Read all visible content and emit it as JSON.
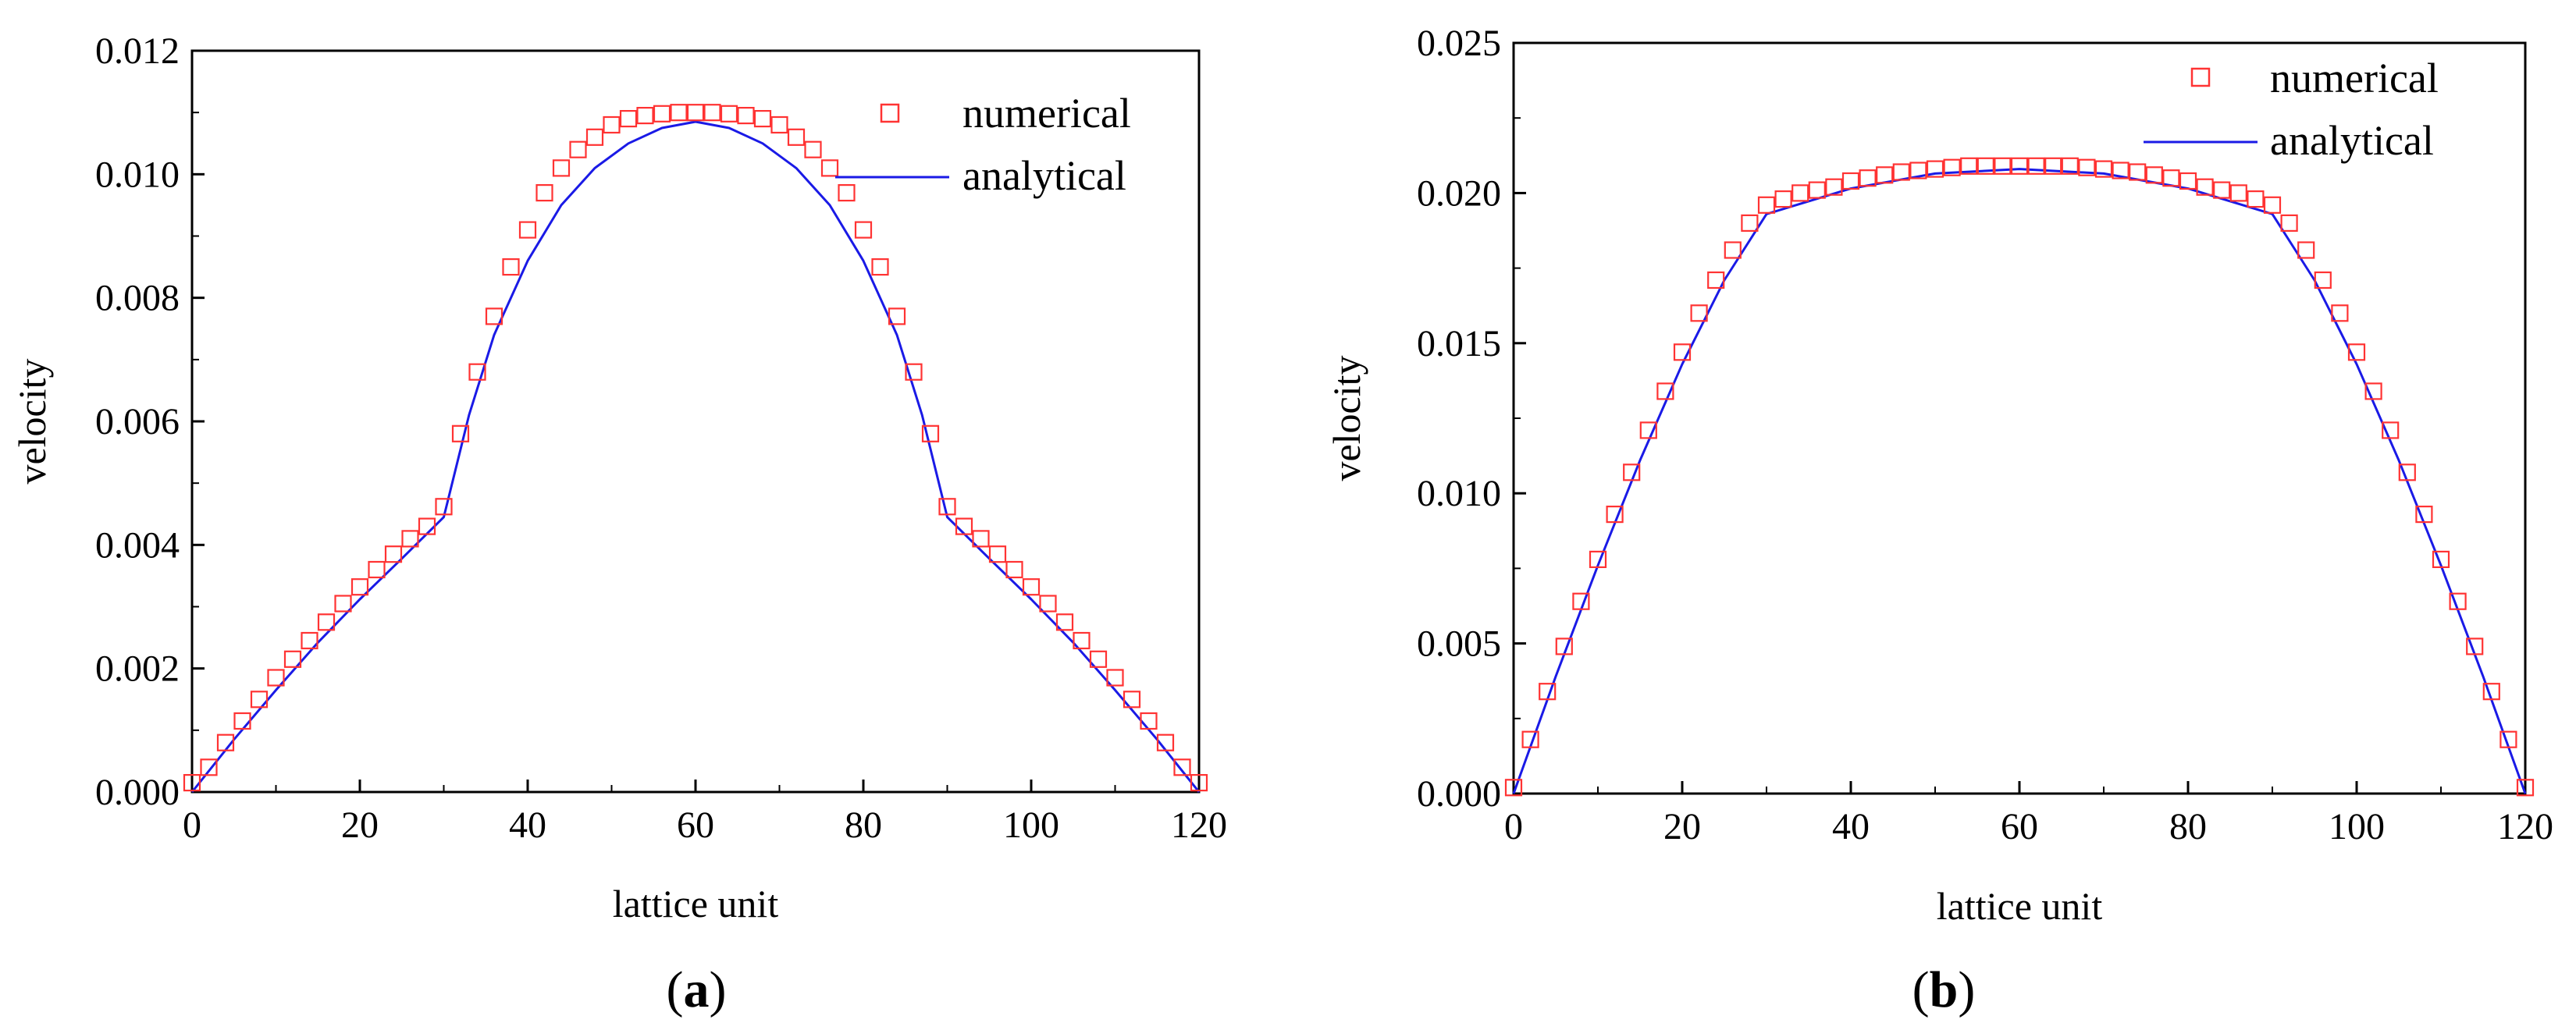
{
  "figure": {
    "colors": {
      "numerical": "#ff3333",
      "analytical": "#1a1ae6",
      "axis": "#000000"
    },
    "legend": {
      "numerical_label": "numerical",
      "analytical_label": "analytical",
      "placement": "top-right"
    }
  },
  "chart_data": [
    {
      "panel": "a",
      "panel_prefix": "(",
      "panel_letter": "a",
      "panel_suffix": ")",
      "type": "line",
      "xlabel": "lattice unit",
      "ylabel": "velocity",
      "xlim": [
        0,
        120
      ],
      "ylim": [
        0,
        0.012
      ],
      "xticks": [
        0,
        20,
        40,
        60,
        80,
        100,
        120
      ],
      "xtick_labels": [
        "0",
        "20",
        "40",
        "60",
        "80",
        "100",
        "120"
      ],
      "yticks": [
        0,
        0.002,
        0.004,
        0.006,
        0.008,
        0.01,
        0.012
      ],
      "ytick_labels": [
        "0.000",
        "0.002",
        "0.004",
        "0.006",
        "0.008",
        "0.010",
        "0.012"
      ],
      "series": [
        {
          "name": "numerical",
          "marker": "open-square",
          "x": [
            0,
            2,
            4,
            6,
            8,
            10,
            12,
            14,
            16,
            18,
            20,
            22,
            24,
            26,
            28,
            30,
            32,
            34,
            36,
            38,
            40,
            42,
            44,
            46,
            48,
            50,
            52,
            54,
            56,
            58,
            60,
            62,
            64,
            66,
            68,
            70,
            72,
            74,
            76,
            78,
            80,
            82,
            84,
            86,
            88,
            90,
            92,
            94,
            96,
            98,
            100,
            102,
            104,
            106,
            108,
            110,
            112,
            114,
            116,
            118,
            120
          ],
          "values": [
            0.00015,
            0.0004,
            0.0008,
            0.00115,
            0.0015,
            0.00185,
            0.00215,
            0.00245,
            0.00275,
            0.00305,
            0.00332,
            0.0036,
            0.00385,
            0.0041,
            0.0043,
            0.00462,
            0.0058,
            0.0068,
            0.0077,
            0.0085,
            0.0091,
            0.0097,
            0.0101,
            0.0104,
            0.0106,
            0.0108,
            0.0109,
            0.01095,
            0.01098,
            0.011,
            0.011,
            0.011,
            0.01098,
            0.01095,
            0.0109,
            0.0108,
            0.0106,
            0.0104,
            0.0101,
            0.0097,
            0.0091,
            0.0085,
            0.0077,
            0.0068,
            0.0058,
            0.00462,
            0.0043,
            0.0041,
            0.00385,
            0.0036,
            0.00332,
            0.00305,
            0.00275,
            0.00245,
            0.00215,
            0.00185,
            0.0015,
            0.00115,
            0.0008,
            0.0004,
            0.00015
          ]
        },
        {
          "name": "analytical",
          "marker": "none",
          "x": [
            0,
            5,
            10,
            15,
            20,
            25,
            30,
            33,
            36,
            40,
            44,
            48,
            52,
            56,
            60,
            64,
            68,
            72,
            76,
            80,
            84,
            87,
            90,
            95,
            100,
            105,
            110,
            115,
            120
          ],
          "values": [
            0,
            0.00085,
            0.00165,
            0.00242,
            0.00312,
            0.00378,
            0.00445,
            0.0061,
            0.0074,
            0.0086,
            0.0095,
            0.0101,
            0.0105,
            0.01075,
            0.01085,
            0.01075,
            0.0105,
            0.0101,
            0.0095,
            0.0086,
            0.0074,
            0.0061,
            0.00445,
            0.00378,
            0.00312,
            0.00242,
            0.00165,
            0.00085,
            0
          ]
        }
      ]
    },
    {
      "panel": "b",
      "panel_prefix": "(",
      "panel_letter": "b",
      "panel_suffix": ")",
      "type": "line",
      "xlabel": "lattice unit",
      "ylabel": "velocity",
      "xlim": [
        0,
        120
      ],
      "ylim": [
        0,
        0.025
      ],
      "xticks": [
        0,
        20,
        40,
        60,
        80,
        100,
        120
      ],
      "xtick_labels": [
        "0",
        "20",
        "40",
        "60",
        "80",
        "100",
        "120"
      ],
      "yticks": [
        0,
        0.005,
        0.01,
        0.015,
        0.02,
        0.025
      ],
      "ytick_labels": [
        "0.000",
        "0.005",
        "0.010",
        "0.015",
        "0.020",
        "0.025"
      ],
      "series": [
        {
          "name": "numerical",
          "marker": "open-square",
          "x": [
            0,
            2,
            4,
            6,
            8,
            10,
            12,
            14,
            16,
            18,
            20,
            22,
            24,
            26,
            28,
            30,
            32,
            34,
            36,
            38,
            40,
            42,
            44,
            46,
            48,
            50,
            52,
            54,
            56,
            58,
            60,
            62,
            64,
            66,
            68,
            70,
            72,
            74,
            76,
            78,
            80,
            82,
            84,
            86,
            88,
            90,
            92,
            94,
            96,
            98,
            100,
            102,
            104,
            106,
            108,
            110,
            112,
            114,
            116,
            118,
            120
          ],
          "values": [
            0.0002,
            0.0018,
            0.0034,
            0.0049,
            0.0064,
            0.0078,
            0.0093,
            0.0107,
            0.0121,
            0.0134,
            0.0147,
            0.016,
            0.0171,
            0.0181,
            0.019,
            0.0196,
            0.0198,
            0.02,
            0.0201,
            0.0202,
            0.0204,
            0.0205,
            0.0206,
            0.0207,
            0.02075,
            0.0208,
            0.02085,
            0.0209,
            0.0209,
            0.0209,
            0.0209,
            0.0209,
            0.0209,
            0.0209,
            0.02085,
            0.0208,
            0.02075,
            0.0207,
            0.0206,
            0.0205,
            0.0204,
            0.0202,
            0.0201,
            0.02,
            0.0198,
            0.0196,
            0.019,
            0.0181,
            0.0171,
            0.016,
            0.0147,
            0.0134,
            0.0121,
            0.0107,
            0.0093,
            0.0078,
            0.0064,
            0.0049,
            0.0034,
            0.0018,
            0.0002
          ]
        },
        {
          "name": "analytical",
          "marker": "none",
          "x": [
            0,
            5,
            10,
            15,
            20,
            25,
            30,
            40,
            50,
            60,
            70,
            80,
            90,
            95,
            100,
            105,
            110,
            115,
            120
          ],
          "values": [
            0,
            0.0039,
            0.0076,
            0.0111,
            0.0143,
            0.0171,
            0.0193,
            0.02015,
            0.02065,
            0.0208,
            0.02065,
            0.02015,
            0.0193,
            0.0171,
            0.0143,
            0.0111,
            0.0076,
            0.0039,
            0
          ]
        }
      ]
    }
  ]
}
